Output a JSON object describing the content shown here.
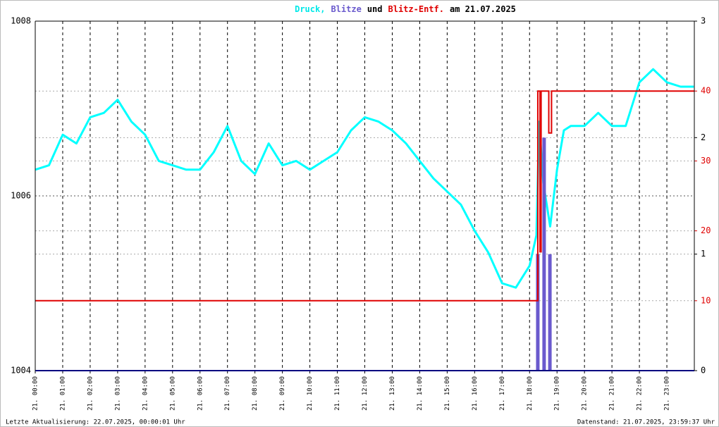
{
  "chart_data": {
    "type": "line",
    "title": [
      "Druck,",
      "Blitze",
      "und",
      "Blitz-Entf.",
      "am 21.07.2025"
    ],
    "title_colors": [
      "#00e8e8",
      "#6a5acd",
      "#000000",
      "#e00000",
      "#000000"
    ],
    "footer_left": "Letzte Aktualisierung: 22.07.2025, 00:00:01 Uhr",
    "footer_right": "Datenstand: 21.07.2025, 23:59:37 Uhr",
    "xlim": [
      0,
      24
    ],
    "xticks": [
      {
        "value": 0,
        "label": "21. 00:00"
      },
      {
        "value": 1,
        "label": "21. 01:00"
      },
      {
        "value": 2,
        "label": "21. 02:00"
      },
      {
        "value": 3,
        "label": "21. 03:00"
      },
      {
        "value": 4,
        "label": "21. 04:00"
      },
      {
        "value": 5,
        "label": "21. 05:00"
      },
      {
        "value": 6,
        "label": "21. 06:00"
      },
      {
        "value": 7,
        "label": "21. 07:00"
      },
      {
        "value": 8,
        "label": "21. 08:00"
      },
      {
        "value": 9,
        "label": "21. 09:00"
      },
      {
        "value": 10,
        "label": "21. 10:00"
      },
      {
        "value": 11,
        "label": "21. 11:00"
      },
      {
        "value": 12,
        "label": "21. 12:00"
      },
      {
        "value": 13,
        "label": "21. 13:00"
      },
      {
        "value": 14,
        "label": "21. 14:00"
      },
      {
        "value": 15,
        "label": "21. 15:00"
      },
      {
        "value": 16,
        "label": "21. 16:00"
      },
      {
        "value": 17,
        "label": "21. 17:00"
      },
      {
        "value": 18,
        "label": "21. 18:00"
      },
      {
        "value": 19,
        "label": "21. 19:00"
      },
      {
        "value": 20,
        "label": "21. 20:00"
      },
      {
        "value": 21,
        "label": "21. 21:00"
      },
      {
        "value": 22,
        "label": "21. 22:00"
      },
      {
        "value": 23,
        "label": "21. 23:00"
      }
    ],
    "ylim": [
      1004,
      1008
    ],
    "yticks": [
      1004,
      1006,
      1008
    ],
    "y2lim": [
      0,
      3
    ],
    "y2ticks": [
      0,
      1,
      2,
      3
    ],
    "y3lim": [
      0,
      50
    ],
    "y3ticks": [
      10,
      20,
      30,
      40
    ],
    "grid": true,
    "series": [
      {
        "name": "Druck",
        "color": "#00ffff",
        "axis": "y",
        "x": [
          0,
          0.5,
          1,
          1.5,
          2,
          2.5,
          3,
          3.5,
          4,
          4.5,
          5,
          5.5,
          6,
          6.5,
          7,
          7.5,
          8,
          8.5,
          9,
          9.5,
          10,
          10.5,
          11,
          11.5,
          12,
          12.5,
          13,
          13.5,
          14,
          14.5,
          15,
          15.5,
          16,
          16.5,
          17,
          17.5,
          18,
          18.25,
          18.35,
          18.5,
          18.75,
          19,
          19.25,
          19.5,
          20,
          20.5,
          21,
          21.5,
          22,
          22.5,
          23,
          23.5,
          23.98
        ],
        "values": [
          1006.3,
          1006.35,
          1006.7,
          1006.6,
          1006.9,
          1006.95,
          1007.1,
          1006.85,
          1006.7,
          1006.4,
          1006.35,
          1006.3,
          1006.3,
          1006.5,
          1006.8,
          1006.4,
          1006.25,
          1006.6,
          1006.35,
          1006.4,
          1006.3,
          1006.4,
          1006.5,
          1006.75,
          1006.9,
          1006.85,
          1006.75,
          1006.6,
          1006.4,
          1006.2,
          1006.05,
          1005.9,
          1005.6,
          1005.35,
          1005.0,
          1004.95,
          1005.2,
          1005.55,
          1006.85,
          1006.15,
          1005.65,
          1006.3,
          1006.75,
          1006.8,
          1006.8,
          1006.95,
          1006.8,
          1006.8,
          1007.3,
          1007.45,
          1007.3,
          1007.25,
          1007.25
        ]
      },
      {
        "name": "Blitze",
        "color": "#6a5acd",
        "axis": "y2",
        "type": "bar",
        "x": [
          18.3,
          18.53,
          18.74
        ],
        "values": [
          1,
          2,
          1
        ]
      },
      {
        "name": "Blitz-Entf.",
        "color": "#e00000",
        "axis": "y3",
        "type": "step",
        "x": [
          0,
          18.3,
          18.38,
          18.42,
          18.7,
          18.8,
          24
        ],
        "values": [
          10,
          40,
          17,
          40,
          34,
          40,
          40
        ]
      }
    ]
  }
}
